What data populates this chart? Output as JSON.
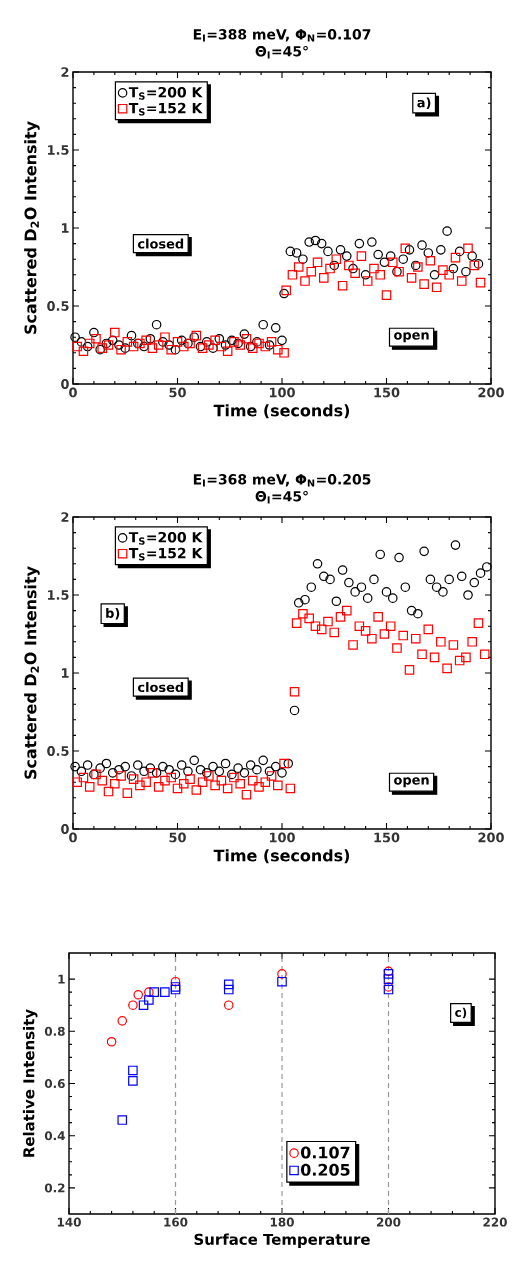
{
  "chart_data": [
    {
      "type": "scatter",
      "title": "E$_{I}$=388 meV, Φ$_{N}$=0.107",
      "subtitle": "Θ$_{I}$=45°",
      "xlabel": "Time (seconds)",
      "ylabel": "Scattered D$_{2}$O Intensity",
      "xlim": [
        0,
        200
      ],
      "ylim": [
        0,
        2
      ],
      "xticks": [
        0,
        50,
        100,
        150,
        200
      ],
      "yticks": [
        0,
        0.5,
        1,
        1.5,
        2
      ],
      "legend": "top left",
      "annotations": [
        "closed",
        "open",
        "a)"
      ],
      "series": [
        {
          "name": "T$_{S}$=200 K",
          "color": "#000000",
          "marker": "circle",
          "x": [
            1,
            4,
            7,
            10,
            13,
            16,
            19,
            22,
            25,
            28,
            31,
            34,
            37,
            40,
            43,
            46,
            49,
            52,
            55,
            58,
            61,
            64,
            67,
            70,
            73,
            76,
            79,
            82,
            85,
            88,
            91,
            94,
            97,
            100,
            101,
            104,
            107,
            110,
            113,
            116,
            119,
            122,
            125,
            128,
            131,
            134,
            137,
            140,
            143,
            146,
            149,
            152,
            155,
            158,
            161,
            164,
            167,
            170,
            173,
            176,
            179,
            182,
            185,
            188,
            191,
            194
          ],
          "values": [
            0.3,
            0.27,
            0.24,
            0.33,
            0.22,
            0.26,
            0.28,
            0.25,
            0.23,
            0.31,
            0.26,
            0.24,
            0.29,
            0.38,
            0.27,
            0.25,
            0.22,
            0.28,
            0.26,
            0.3,
            0.24,
            0.27,
            0.23,
            0.29,
            0.25,
            0.28,
            0.26,
            0.32,
            0.24,
            0.27,
            0.38,
            0.25,
            0.36,
            0.28,
            0.58,
            0.85,
            0.84,
            0.8,
            0.91,
            0.92,
            0.9,
            0.85,
            0.76,
            0.86,
            0.82,
            0.74,
            0.9,
            0.7,
            0.91,
            0.83,
            0.78,
            0.82,
            0.72,
            0.8,
            0.86,
            0.76,
            0.89,
            0.84,
            0.7,
            0.86,
            0.98,
            0.74,
            0.85,
            0.72,
            0.82,
            0.77
          ]
        },
        {
          "name": "T$_{S}$=152 K",
          "color": "#ff0000",
          "marker": "square",
          "x": [
            2,
            5,
            8,
            11,
            14,
            17,
            20,
            23,
            26,
            29,
            32,
            35,
            38,
            41,
            44,
            47,
            50,
            53,
            56,
            59,
            62,
            65,
            68,
            71,
            74,
            77,
            80,
            83,
            86,
            89,
            92,
            95,
            98,
            101,
            102,
            105,
            108,
            111,
            114,
            117,
            120,
            123,
            126,
            129,
            132,
            135,
            138,
            141,
            144,
            147,
            150,
            153,
            156,
            159,
            162,
            165,
            168,
            171,
            174,
            177,
            180,
            183,
            186,
            189,
            192,
            195
          ],
          "values": [
            0.24,
            0.21,
            0.26,
            0.29,
            0.23,
            0.25,
            0.33,
            0.22,
            0.27,
            0.24,
            0.26,
            0.28,
            0.23,
            0.25,
            0.3,
            0.22,
            0.27,
            0.24,
            0.26,
            0.31,
            0.23,
            0.25,
            0.28,
            0.24,
            0.21,
            0.27,
            0.25,
            0.29,
            0.23,
            0.26,
            0.24,
            0.27,
            0.22,
            0.2,
            0.6,
            0.7,
            0.75,
            0.66,
            0.72,
            0.78,
            0.68,
            0.74,
            0.8,
            0.63,
            0.76,
            0.71,
            0.82,
            0.66,
            0.74,
            0.7,
            0.57,
            0.78,
            0.72,
            0.87,
            0.68,
            0.75,
            0.64,
            0.79,
            0.62,
            0.73,
            0.7,
            0.81,
            0.66,
            0.87,
            0.76,
            0.65
          ]
        }
      ]
    },
    {
      "type": "scatter",
      "title": "E$_{I}$=368 meV, Φ$_{N}$=0.205",
      "subtitle": "Θ$_{I}$=45°",
      "xlabel": "Time (seconds)",
      "ylabel": "Scattered D$_{2}$O Intensity",
      "xlim": [
        0,
        200
      ],
      "ylim": [
        0,
        2
      ],
      "xticks": [
        0,
        50,
        100,
        150,
        200
      ],
      "yticks": [
        0,
        0.5,
        1,
        1.5,
        2
      ],
      "legend": "top left",
      "annotations": [
        "closed",
        "open",
        "b)"
      ],
      "series": [
        {
          "name": "T$_{S}$=200 K",
          "color": "#000000",
          "marker": "circle",
          "x": [
            1,
            4,
            7,
            10,
            13,
            16,
            19,
            22,
            25,
            28,
            31,
            34,
            37,
            40,
            43,
            46,
            49,
            52,
            55,
            58,
            61,
            64,
            67,
            70,
            73,
            76,
            79,
            82,
            85,
            88,
            91,
            94,
            97,
            100,
            103,
            106,
            108,
            111,
            114,
            117,
            120,
            123,
            126,
            129,
            132,
            135,
            138,
            141,
            144,
            147,
            150,
            153,
            156,
            159,
            162,
            165,
            168,
            171,
            174,
            177,
            180,
            183,
            186,
            189,
            192,
            195,
            198
          ],
          "values": [
            0.4,
            0.37,
            0.41,
            0.35,
            0.39,
            0.42,
            0.36,
            0.38,
            0.4,
            0.34,
            0.41,
            0.37,
            0.39,
            0.36,
            0.4,
            0.38,
            0.35,
            0.41,
            0.37,
            0.44,
            0.38,
            0.36,
            0.4,
            0.37,
            0.42,
            0.35,
            0.39,
            0.36,
            0.41,
            0.38,
            0.44,
            0.37,
            0.4,
            0.36,
            0.42,
            0.76,
            1.45,
            1.47,
            1.55,
            1.7,
            1.62,
            1.6,
            1.46,
            1.66,
            1.58,
            1.52,
            1.55,
            1.48,
            1.6,
            1.76,
            1.52,
            1.48,
            1.74,
            1.55,
            1.4,
            1.38,
            1.78,
            1.6,
            1.55,
            1.52,
            1.6,
            1.82,
            1.62,
            1.5,
            1.58,
            1.64,
            1.68
          ]
        },
        {
          "name": "T$_{S}$=152 K",
          "color": "#ff0000",
          "marker": "square",
          "x": [
            2,
            5,
            8,
            11,
            14,
            17,
            20,
            23,
            26,
            29,
            32,
            35,
            38,
            41,
            44,
            47,
            50,
            53,
            56,
            59,
            62,
            65,
            68,
            71,
            74,
            77,
            80,
            83,
            86,
            89,
            92,
            95,
            98,
            101,
            104,
            106,
            107,
            110,
            113,
            116,
            119,
            122,
            125,
            128,
            131,
            134,
            137,
            140,
            143,
            146,
            149,
            152,
            155,
            158,
            161,
            164,
            167,
            170,
            173,
            176,
            179,
            182,
            185,
            188,
            191,
            194,
            197
          ],
          "values": [
            0.3,
            0.33,
            0.27,
            0.35,
            0.31,
            0.24,
            0.29,
            0.34,
            0.23,
            0.32,
            0.28,
            0.3,
            0.36,
            0.27,
            0.31,
            0.33,
            0.26,
            0.29,
            0.32,
            0.25,
            0.3,
            0.34,
            0.28,
            0.31,
            0.26,
            0.33,
            0.29,
            0.22,
            0.31,
            0.27,
            0.3,
            0.34,
            0.28,
            0.42,
            0.26,
            0.88,
            1.32,
            1.38,
            1.35,
            1.3,
            1.28,
            1.33,
            1.26,
            1.36,
            1.4,
            1.18,
            1.3,
            1.27,
            1.22,
            1.36,
            1.25,
            1.3,
            1.16,
            1.24,
            1.02,
            1.22,
            1.12,
            1.28,
            1.1,
            1.2,
            1.03,
            1.18,
            1.08,
            1.1,
            1.2,
            1.32,
            1.12
          ]
        }
      ]
    },
    {
      "type": "scatter",
      "xlabel": "Surface Temperature",
      "ylabel": "Relative Intensity",
      "xlim": [
        140,
        220
      ],
      "ylim": [
        0.1,
        1.1
      ],
      "xticks": [
        140,
        160,
        180,
        200,
        220
      ],
      "yticks": [
        0.2,
        0.4,
        0.6,
        0.8,
        1
      ],
      "legend": "bottom right",
      "annotations": [
        "c)"
      ],
      "ref_lines": [
        {
          "axis": "x",
          "value": 160,
          "color": "#999999",
          "line_style": "dashed"
        },
        {
          "axis": "x",
          "value": 180,
          "color": "#999999",
          "line_style": "dashed"
        },
        {
          "axis": "x",
          "value": 200,
          "color": "#999999",
          "line_style": "dashed"
        }
      ],
      "series": [
        {
          "name": "0.107",
          "color": "#ff0000",
          "marker": "circle",
          "x": [
            148,
            150,
            152,
            153,
            155,
            160,
            170,
            180,
            200,
            200
          ],
          "values": [
            0.76,
            0.84,
            0.9,
            0.94,
            0.95,
            0.99,
            0.9,
            1.02,
            1.03,
            0.97
          ]
        },
        {
          "name": "0.205",
          "color": "#0000ff",
          "marker": "square",
          "x": [
            150,
            152,
            152,
            154,
            155,
            156,
            158,
            160,
            160,
            170,
            170,
            180,
            200,
            200,
            200
          ],
          "values": [
            0.46,
            0.61,
            0.65,
            0.9,
            0.92,
            0.95,
            0.95,
            0.96,
            0.97,
            0.96,
            0.98,
            0.99,
            0.96,
            1.0,
            1.02
          ]
        }
      ]
    }
  ]
}
